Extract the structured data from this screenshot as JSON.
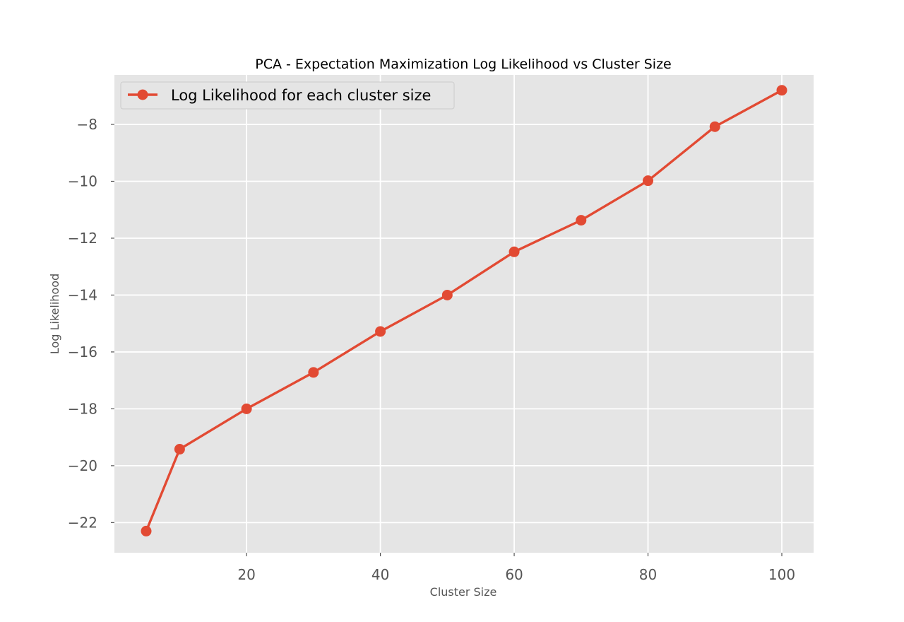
{
  "chart_data": {
    "type": "line",
    "title": "PCA - Expectation Maximization Log Likelihood vs Cluster Size",
    "xlabel": "Cluster Size",
    "ylabel": "Log Likelihood",
    "xlim": [
      0.25,
      104.75
    ],
    "ylim": [
      -23.06,
      -6.26
    ],
    "xticks": [
      20,
      40,
      60,
      80,
      100
    ],
    "yticks": [
      -22,
      -20,
      -18,
      -16,
      -14,
      -12,
      -10,
      -8
    ],
    "xtick_labels": [
      "20",
      "40",
      "60",
      "80",
      "100"
    ],
    "ytick_labels": [
      "−22",
      "−20",
      "−18",
      "−16",
      "−14",
      "−12",
      "−10",
      "−8"
    ],
    "grid": true,
    "legend": "top-left",
    "series": [
      {
        "name": "Log Likelihood for each cluster size",
        "color": "#E24A33",
        "marker": "circle",
        "x": [
          5,
          10,
          20,
          30,
          40,
          50,
          60,
          70,
          80,
          90,
          100
        ],
        "y": [
          -22.3,
          -19.42,
          -18.0,
          -16.72,
          -15.28,
          -14.0,
          -12.48,
          -11.37,
          -9.98,
          -8.08,
          -6.8
        ]
      }
    ]
  }
}
